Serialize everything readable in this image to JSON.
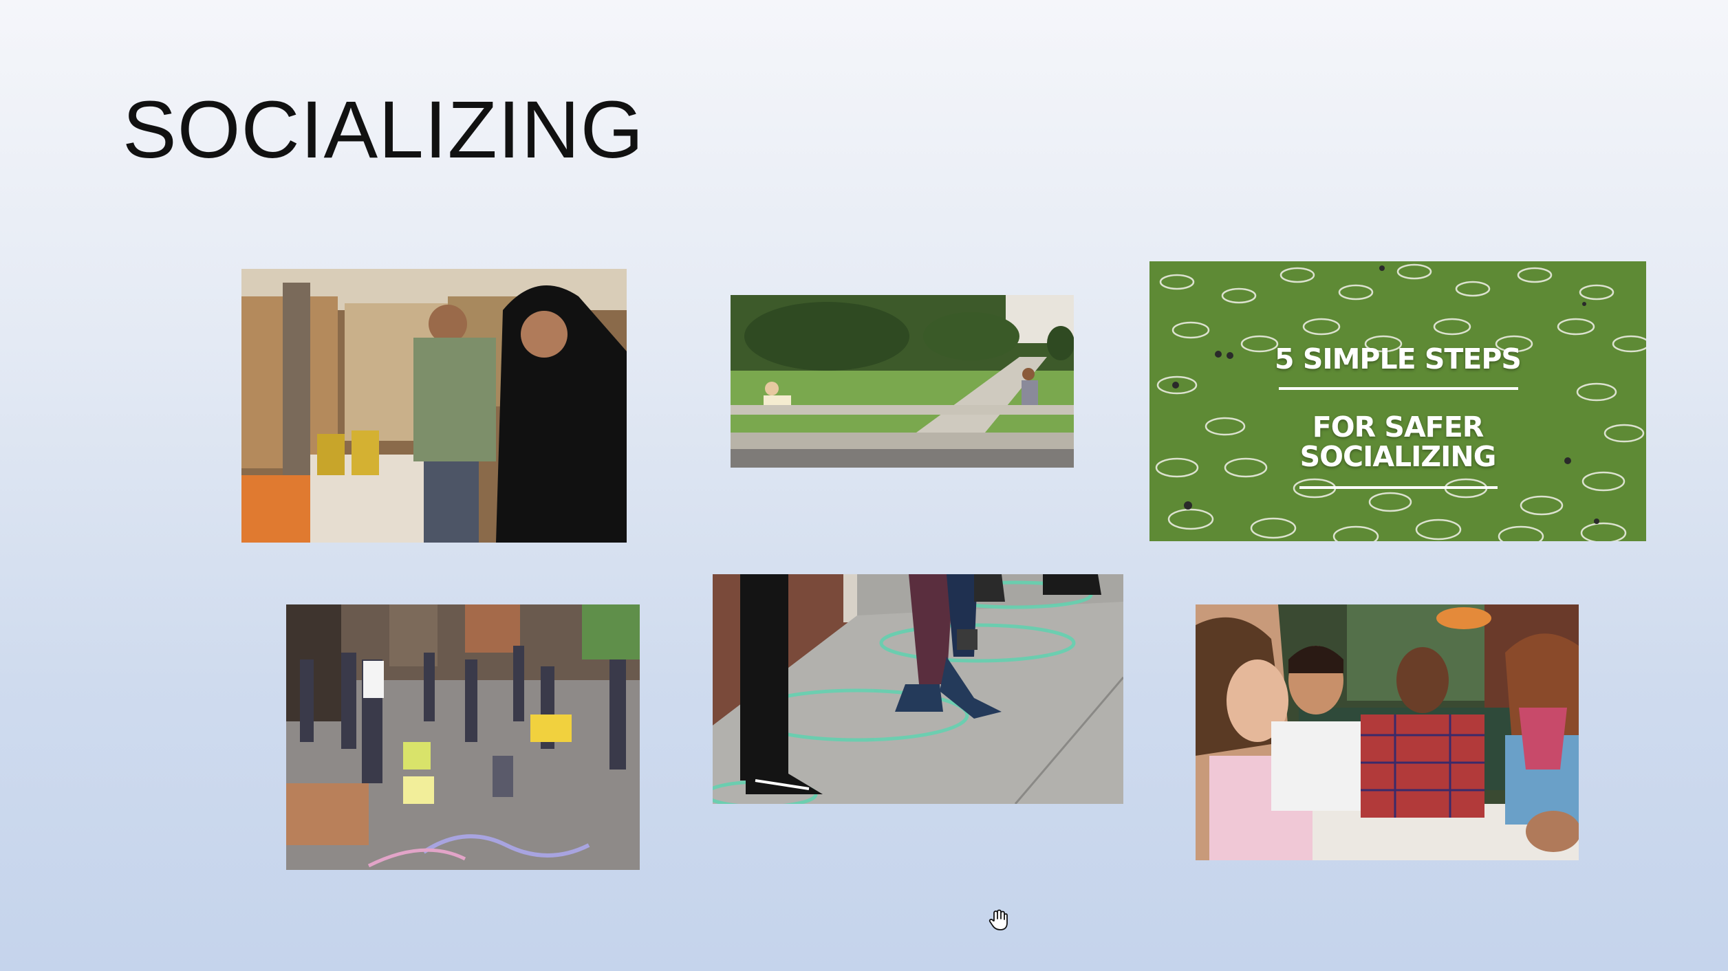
{
  "slide": {
    "title": "SOCIALIZING"
  },
  "photos": {
    "market": {
      "icon": "market-photo"
    },
    "lawn": {
      "icon": "lawn-photo"
    },
    "park": {
      "icon": "park-circles-photo",
      "headline": "5 SIMPLE STEPS",
      "subline_1": "FOR SAFER",
      "subline_2": "SOCIALIZING"
    },
    "street": {
      "icon": "street-chalk-photo"
    },
    "sidewalk": {
      "icon": "sidewalk-circles-photo"
    },
    "friends": {
      "icon": "friends-photo"
    }
  },
  "colors": {
    "grass": "#5e8a35",
    "circle": "#ffffff",
    "chalk": "#5fd3b0"
  }
}
